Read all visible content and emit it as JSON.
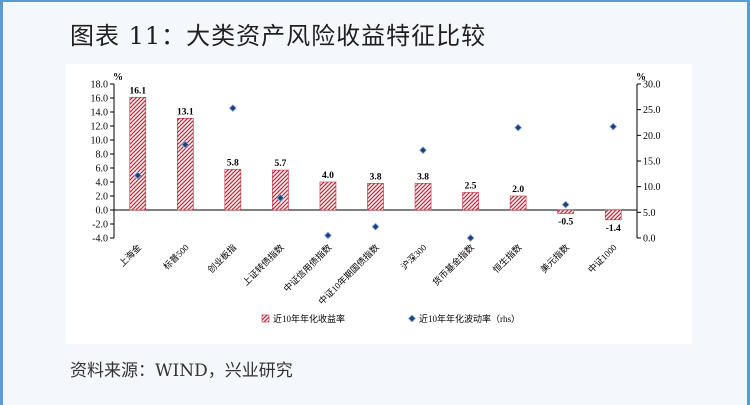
{
  "title": "图表 11：大类资产风险收益特征比较",
  "source": "资料来源：WIND，兴业研究",
  "colors": {
    "bar_stroke": "#c0283a",
    "marker": "#1f3f7a",
    "border": "#5b9bd5"
  },
  "chart_data": {
    "type": "bar",
    "categories": [
      "上海金",
      "标普500",
      "创业板指",
      "上证转债指数",
      "中证信用债指数",
      "中证10年期国债指数",
      "沪深300",
      "货币基金指数",
      "恒生指数",
      "美元指数",
      "中证1000"
    ],
    "series": [
      {
        "name": "近10年年化收益率",
        "axis": "left",
        "type": "bar",
        "values": [
          16.1,
          13.1,
          5.8,
          5.7,
          4.0,
          3.8,
          3.8,
          2.5,
          2.0,
          -0.5,
          -1.4
        ]
      },
      {
        "name": "近10年年化波动率（rhs）",
        "axis": "right",
        "type": "scatter",
        "values": [
          12.2,
          18.2,
          25.3,
          7.8,
          0.5,
          2.2,
          17.1,
          0.0,
          21.5,
          6.5,
          21.7
        ]
      }
    ],
    "left_axis": {
      "unit": "%",
      "ylim": [
        -4.0,
        18.0
      ],
      "ticks": [
        "-4.0",
        "-2.0",
        "0.0",
        "2.0",
        "4.0",
        "6.0",
        "8.0",
        "10.0",
        "12.0",
        "14.0",
        "16.0",
        "18.0"
      ]
    },
    "right_axis": {
      "unit": "%",
      "ylim": [
        0.0,
        30.0
      ],
      "ticks": [
        "0.0",
        "5.0",
        "10.0",
        "15.0",
        "20.0",
        "25.0",
        "30.0"
      ]
    },
    "legend": {
      "position": "bottom",
      "bar_label": "近10年年化收益率",
      "marker_label": "近10年年化波动率（rhs）"
    },
    "grid": false
  }
}
